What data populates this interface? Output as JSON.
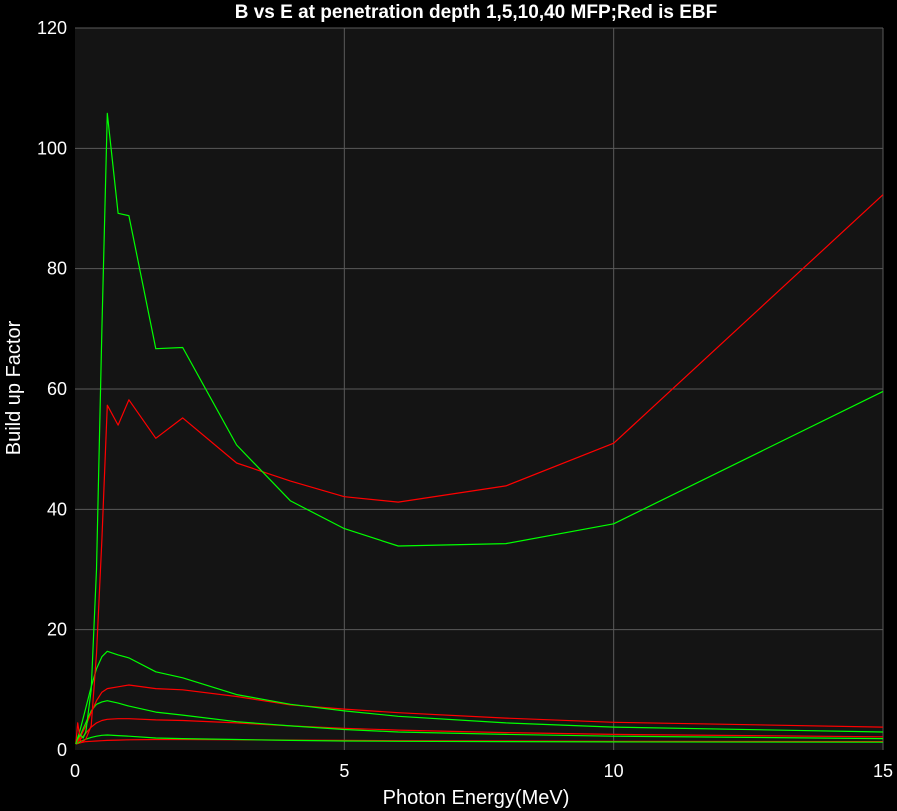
{
  "chart_data": {
    "type": "line",
    "title": "B vs E at penetration depth 1,5,10,40 MFP;Red is EBF",
    "xlabel": "Photon Energy(MeV)",
    "ylabel": "Build up Factor",
    "xlim": [
      0,
      15
    ],
    "ylim": [
      0,
      120
    ],
    "xticks": [
      0,
      5,
      10,
      15
    ],
    "yticks": [
      0,
      20,
      40,
      60,
      80,
      100,
      120
    ],
    "grid": true,
    "background_color": "#141414",
    "page_color": "#000000",
    "series": [
      {
        "color": "#ff0000",
        "x": [
          0.015,
          0.1,
          0.2,
          0.3,
          0.4,
          0.5,
          0.6,
          0.8,
          1.0,
          1.5,
          2.0,
          3.0,
          4.0,
          5.0,
          6.0,
          8.0,
          10.0,
          15.0
        ],
        "y": [
          1.0,
          1.2,
          1.4,
          1.45,
          1.5,
          1.55,
          1.6,
          1.65,
          1.7,
          1.75,
          1.75,
          1.7,
          1.65,
          1.6,
          1.55,
          1.5,
          1.45,
          1.4
        ]
      },
      {
        "color": "#00ff00",
        "x": [
          0.015,
          0.1,
          0.2,
          0.3,
          0.4,
          0.5,
          0.6,
          0.8,
          1.0,
          1.5,
          2.0,
          3.0,
          4.0,
          5.0,
          6.0,
          8.0,
          10.0,
          15.0
        ],
        "y": [
          1.0,
          1.4,
          1.8,
          2.1,
          2.3,
          2.45,
          2.5,
          2.4,
          2.3,
          2.0,
          1.9,
          1.75,
          1.6,
          1.5,
          1.45,
          1.4,
          1.35,
          1.3
        ]
      },
      {
        "color": "#ff0000",
        "x": [
          0.015,
          0.1,
          0.2,
          0.3,
          0.4,
          0.5,
          0.6,
          0.8,
          1.0,
          1.5,
          2.0,
          3.0,
          4.0,
          5.0,
          6.0,
          8.0,
          10.0,
          15.0
        ],
        "y": [
          1.0,
          1.8,
          2.8,
          3.8,
          4.5,
          4.9,
          5.1,
          5.2,
          5.2,
          5.0,
          4.9,
          4.5,
          4.0,
          3.6,
          3.3,
          2.9,
          2.6,
          2.2
        ]
      },
      {
        "color": "#00ff00",
        "x": [
          0.015,
          0.1,
          0.2,
          0.3,
          0.4,
          0.5,
          0.6,
          0.8,
          1.0,
          1.5,
          2.0,
          3.0,
          4.0,
          5.0,
          6.0,
          8.0,
          10.0,
          15.0
        ],
        "y": [
          1.0,
          2.5,
          4.5,
          6.5,
          7.6,
          8.0,
          8.2,
          7.8,
          7.3,
          6.3,
          5.8,
          4.7,
          4.0,
          3.4,
          3.0,
          2.6,
          2.3,
          1.9
        ]
      },
      {
        "color": "#ff0000",
        "x": [
          0.015,
          0.1,
          0.2,
          0.3,
          0.4,
          0.5,
          0.6,
          0.8,
          1.0,
          1.5,
          2.0,
          3.0,
          4.0,
          5.0,
          6.0,
          8.0,
          10.0,
          15.0
        ],
        "y": [
          1.0,
          2.2,
          4.0,
          6.2,
          8.2,
          9.6,
          10.2,
          10.5,
          10.8,
          10.2,
          10.0,
          8.9,
          7.5,
          6.8,
          6.2,
          5.3,
          4.6,
          3.8
        ]
      },
      {
        "color": "#00ff00",
        "x": [
          0.015,
          0.1,
          0.2,
          0.3,
          0.4,
          0.5,
          0.6,
          0.8,
          1.0,
          1.5,
          2.0,
          3.0,
          4.0,
          5.0,
          6.0,
          8.0,
          10.0,
          15.0
        ],
        "y": [
          1.0,
          3.5,
          7.0,
          10.5,
          13.5,
          15.5,
          16.4,
          15.8,
          15.3,
          13.0,
          12.0,
          9.2,
          7.6,
          6.5,
          5.6,
          4.5,
          3.8,
          3.0
        ]
      },
      {
        "color": "#ff0000",
        "x": [
          0.015,
          0.05,
          0.1,
          0.15,
          0.2,
          0.3,
          0.4,
          0.5,
          0.6,
          0.8,
          1.0,
          1.5,
          2.0,
          3.0,
          4.0,
          5.0,
          6.0,
          8.0,
          10.0,
          15.0
        ],
        "y": [
          1.0,
          4.5,
          1.6,
          1.4,
          1.8,
          4.0,
          16.0,
          35.0,
          57.3,
          54.0,
          58.2,
          51.8,
          55.2,
          47.7,
          44.7,
          42.1,
          41.2,
          43.9,
          51.0,
          92.3
        ]
      },
      {
        "color": "#00ff00",
        "x": [
          0.015,
          0.05,
          0.1,
          0.15,
          0.2,
          0.3,
          0.4,
          0.5,
          0.6,
          0.8,
          1.0,
          1.5,
          2.0,
          3.0,
          4.0,
          5.0,
          6.0,
          8.0,
          10.0,
          15.0
        ],
        "y": [
          1.0,
          2.0,
          2.5,
          2.0,
          3.0,
          10.0,
          30.0,
          70.0,
          105.8,
          89.2,
          88.8,
          66.7,
          66.9,
          50.7,
          41.4,
          36.8,
          33.9,
          34.3,
          37.6,
          59.6
        ]
      }
    ]
  }
}
